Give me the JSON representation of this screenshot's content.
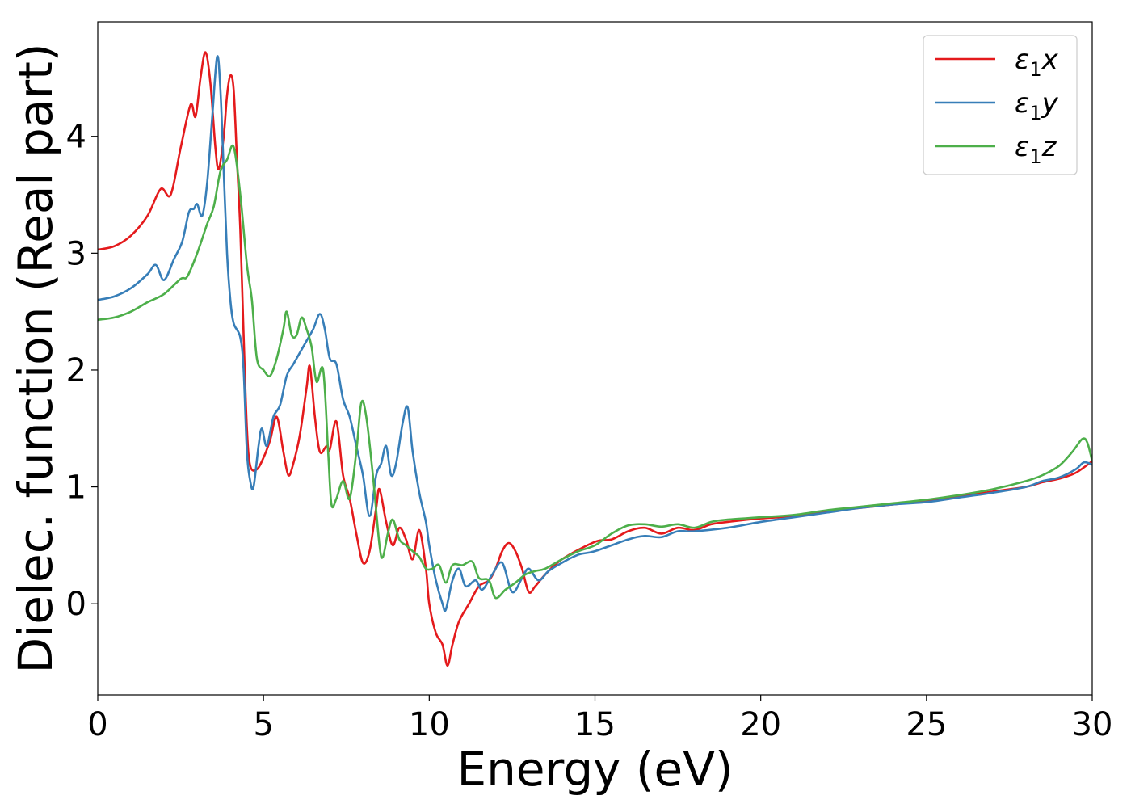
{
  "chart_data": {
    "type": "line",
    "xlabel": "Energy (eV)",
    "ylabel": "Dielec. function (Real part)",
    "xlim": [
      0,
      30
    ],
    "ylim": [
      -0.78,
      4.98
    ],
    "xticks": [
      0,
      5,
      10,
      15,
      20,
      25,
      30
    ],
    "yticks": [
      0,
      1,
      2,
      3,
      4
    ],
    "grid": false,
    "legend_position": "top-right",
    "series": [
      {
        "name": "ε1x",
        "legend_main": "ε",
        "legend_sub": "1",
        "legend_suffix": "x",
        "color": "#e41a1c",
        "points": [
          [
            0,
            3.03
          ],
          [
            0.5,
            3.06
          ],
          [
            1.0,
            3.15
          ],
          [
            1.5,
            3.32
          ],
          [
            1.9,
            3.55
          ],
          [
            2.2,
            3.5
          ],
          [
            2.5,
            3.9
          ],
          [
            2.8,
            4.27
          ],
          [
            2.95,
            4.17
          ],
          [
            3.1,
            4.5
          ],
          [
            3.25,
            4.72
          ],
          [
            3.4,
            4.45
          ],
          [
            3.55,
            3.9
          ],
          [
            3.65,
            3.72
          ],
          [
            3.8,
            4.0
          ],
          [
            3.9,
            4.35
          ],
          [
            4.0,
            4.52
          ],
          [
            4.1,
            4.4
          ],
          [
            4.2,
            3.8
          ],
          [
            4.3,
            3.2
          ],
          [
            4.4,
            2.3
          ],
          [
            4.5,
            1.5
          ],
          [
            4.6,
            1.18
          ],
          [
            4.8,
            1.15
          ],
          [
            5.0,
            1.25
          ],
          [
            5.2,
            1.4
          ],
          [
            5.4,
            1.6
          ],
          [
            5.6,
            1.3
          ],
          [
            5.75,
            1.1
          ],
          [
            5.9,
            1.2
          ],
          [
            6.1,
            1.45
          ],
          [
            6.3,
            1.85
          ],
          [
            6.4,
            2.03
          ],
          [
            6.55,
            1.6
          ],
          [
            6.7,
            1.3
          ],
          [
            6.9,
            1.35
          ],
          [
            7.0,
            1.32
          ],
          [
            7.2,
            1.56
          ],
          [
            7.4,
            1.1
          ],
          [
            7.6,
            0.9
          ],
          [
            7.8,
            0.6
          ],
          [
            8.0,
            0.35
          ],
          [
            8.2,
            0.45
          ],
          [
            8.4,
            0.82
          ],
          [
            8.5,
            0.98
          ],
          [
            8.7,
            0.7
          ],
          [
            8.9,
            0.5
          ],
          [
            9.1,
            0.65
          ],
          [
            9.3,
            0.55
          ],
          [
            9.5,
            0.38
          ],
          [
            9.7,
            0.63
          ],
          [
            9.9,
            0.3
          ],
          [
            10.0,
            0.0
          ],
          [
            10.2,
            -0.25
          ],
          [
            10.4,
            -0.35
          ],
          [
            10.55,
            -0.53
          ],
          [
            10.7,
            -0.35
          ],
          [
            10.9,
            -0.15
          ],
          [
            11.2,
            0.0
          ],
          [
            11.5,
            0.15
          ],
          [
            11.8,
            0.2
          ],
          [
            12.0,
            0.3
          ],
          [
            12.2,
            0.45
          ],
          [
            12.4,
            0.52
          ],
          [
            12.6,
            0.45
          ],
          [
            12.8,
            0.3
          ],
          [
            13.0,
            0.1
          ],
          [
            13.2,
            0.15
          ],
          [
            13.5,
            0.25
          ],
          [
            14.0,
            0.38
          ],
          [
            15.0,
            0.53
          ],
          [
            15.5,
            0.55
          ],
          [
            16.0,
            0.62
          ],
          [
            16.5,
            0.65
          ],
          [
            17.0,
            0.6
          ],
          [
            17.5,
            0.65
          ],
          [
            18.0,
            0.63
          ],
          [
            18.5,
            0.68
          ],
          [
            19.0,
            0.7
          ],
          [
            20.0,
            0.73
          ],
          [
            21.0,
            0.75
          ],
          [
            22.0,
            0.79
          ],
          [
            23.0,
            0.82
          ],
          [
            24.0,
            0.85
          ],
          [
            25.0,
            0.88
          ],
          [
            26.0,
            0.92
          ],
          [
            27.0,
            0.96
          ],
          [
            28.0,
            1.0
          ],
          [
            28.5,
            1.04
          ],
          [
            29.0,
            1.07
          ],
          [
            29.5,
            1.12
          ],
          [
            30.0,
            1.22
          ]
        ]
      },
      {
        "name": "ε1y",
        "legend_main": "ε",
        "legend_sub": "1",
        "legend_suffix": "y",
        "color": "#377eb8",
        "points": [
          [
            0,
            2.6
          ],
          [
            0.5,
            2.63
          ],
          [
            1.0,
            2.7
          ],
          [
            1.5,
            2.82
          ],
          [
            1.75,
            2.9
          ],
          [
            2.0,
            2.77
          ],
          [
            2.3,
            2.95
          ],
          [
            2.55,
            3.1
          ],
          [
            2.75,
            3.35
          ],
          [
            2.9,
            3.38
          ],
          [
            3.0,
            3.42
          ],
          [
            3.15,
            3.32
          ],
          [
            3.3,
            3.6
          ],
          [
            3.45,
            4.15
          ],
          [
            3.6,
            4.68
          ],
          [
            3.7,
            4.4
          ],
          [
            3.8,
            3.7
          ],
          [
            3.9,
            3.0
          ],
          [
            4.0,
            2.6
          ],
          [
            4.1,
            2.4
          ],
          [
            4.3,
            2.28
          ],
          [
            4.4,
            2.0
          ],
          [
            4.5,
            1.3
          ],
          [
            4.6,
            1.05
          ],
          [
            4.7,
            1.0
          ],
          [
            4.85,
            1.35
          ],
          [
            4.95,
            1.5
          ],
          [
            5.1,
            1.35
          ],
          [
            5.3,
            1.6
          ],
          [
            5.5,
            1.7
          ],
          [
            5.7,
            1.95
          ],
          [
            5.9,
            2.05
          ],
          [
            6.1,
            2.15
          ],
          [
            6.3,
            2.25
          ],
          [
            6.5,
            2.35
          ],
          [
            6.7,
            2.48
          ],
          [
            6.85,
            2.35
          ],
          [
            7.0,
            2.1
          ],
          [
            7.2,
            2.05
          ],
          [
            7.4,
            1.75
          ],
          [
            7.6,
            1.6
          ],
          [
            7.8,
            1.35
          ],
          [
            8.0,
            1.1
          ],
          [
            8.2,
            0.75
          ],
          [
            8.4,
            1.1
          ],
          [
            8.55,
            1.2
          ],
          [
            8.7,
            1.35
          ],
          [
            8.85,
            1.1
          ],
          [
            9.0,
            1.2
          ],
          [
            9.2,
            1.55
          ],
          [
            9.35,
            1.68
          ],
          [
            9.5,
            1.3
          ],
          [
            9.7,
            0.95
          ],
          [
            9.9,
            0.7
          ],
          [
            10.0,
            0.5
          ],
          [
            10.2,
            0.2
          ],
          [
            10.4,
            0.0
          ],
          [
            10.5,
            -0.05
          ],
          [
            10.7,
            0.2
          ],
          [
            10.9,
            0.3
          ],
          [
            11.1,
            0.15
          ],
          [
            11.4,
            0.2
          ],
          [
            11.6,
            0.12
          ],
          [
            11.9,
            0.25
          ],
          [
            12.2,
            0.35
          ],
          [
            12.5,
            0.1
          ],
          [
            12.8,
            0.22
          ],
          [
            13.0,
            0.3
          ],
          [
            13.3,
            0.2
          ],
          [
            13.6,
            0.28
          ],
          [
            14.0,
            0.35
          ],
          [
            14.5,
            0.42
          ],
          [
            15.0,
            0.45
          ],
          [
            16.0,
            0.55
          ],
          [
            16.5,
            0.58
          ],
          [
            17.0,
            0.57
          ],
          [
            17.5,
            0.62
          ],
          [
            18.0,
            0.62
          ],
          [
            19.0,
            0.65
          ],
          [
            20.0,
            0.7
          ],
          [
            21.0,
            0.74
          ],
          [
            22.0,
            0.78
          ],
          [
            23.0,
            0.82
          ],
          [
            24.0,
            0.85
          ],
          [
            25.0,
            0.87
          ],
          [
            26.0,
            0.91
          ],
          [
            27.0,
            0.95
          ],
          [
            28.0,
            1.0
          ],
          [
            28.5,
            1.05
          ],
          [
            29.0,
            1.08
          ],
          [
            29.5,
            1.15
          ],
          [
            29.75,
            1.21
          ],
          [
            30.0,
            1.19
          ]
        ]
      },
      {
        "name": "ε1z",
        "legend_main": "ε",
        "legend_sub": "1",
        "legend_suffix": "z",
        "color": "#4daf4a",
        "points": [
          [
            0,
            2.43
          ],
          [
            0.5,
            2.45
          ],
          [
            1.0,
            2.5
          ],
          [
            1.5,
            2.58
          ],
          [
            2.0,
            2.65
          ],
          [
            2.5,
            2.78
          ],
          [
            2.7,
            2.8
          ],
          [
            3.0,
            3.0
          ],
          [
            3.3,
            3.25
          ],
          [
            3.5,
            3.4
          ],
          [
            3.7,
            3.7
          ],
          [
            3.9,
            3.8
          ],
          [
            4.1,
            3.91
          ],
          [
            4.3,
            3.5
          ],
          [
            4.5,
            2.9
          ],
          [
            4.65,
            2.6
          ],
          [
            4.8,
            2.1
          ],
          [
            5.0,
            2.0
          ],
          [
            5.2,
            1.95
          ],
          [
            5.4,
            2.1
          ],
          [
            5.6,
            2.35
          ],
          [
            5.7,
            2.5
          ],
          [
            5.85,
            2.3
          ],
          [
            6.0,
            2.3
          ],
          [
            6.15,
            2.45
          ],
          [
            6.3,
            2.35
          ],
          [
            6.45,
            2.2
          ],
          [
            6.6,
            1.9
          ],
          [
            6.8,
            2.0
          ],
          [
            6.95,
            1.3
          ],
          [
            7.05,
            0.85
          ],
          [
            7.2,
            0.9
          ],
          [
            7.4,
            1.05
          ],
          [
            7.6,
            0.9
          ],
          [
            7.8,
            1.3
          ],
          [
            7.95,
            1.72
          ],
          [
            8.1,
            1.6
          ],
          [
            8.3,
            1.1
          ],
          [
            8.5,
            0.5
          ],
          [
            8.6,
            0.4
          ],
          [
            8.75,
            0.6
          ],
          [
            8.9,
            0.72
          ],
          [
            9.1,
            0.55
          ],
          [
            9.3,
            0.5
          ],
          [
            9.5,
            0.45
          ],
          [
            9.7,
            0.4
          ],
          [
            9.9,
            0.3
          ],
          [
            10.1,
            0.3
          ],
          [
            10.3,
            0.33
          ],
          [
            10.5,
            0.18
          ],
          [
            10.7,
            0.33
          ],
          [
            11.0,
            0.33
          ],
          [
            11.3,
            0.36
          ],
          [
            11.5,
            0.22
          ],
          [
            11.8,
            0.2
          ],
          [
            12.0,
            0.05
          ],
          [
            12.3,
            0.12
          ],
          [
            12.6,
            0.18
          ],
          [
            12.9,
            0.25
          ],
          [
            13.2,
            0.28
          ],
          [
            13.5,
            0.3
          ],
          [
            14.0,
            0.38
          ],
          [
            14.5,
            0.45
          ],
          [
            15.0,
            0.5
          ],
          [
            15.5,
            0.6
          ],
          [
            16.0,
            0.67
          ],
          [
            16.5,
            0.68
          ],
          [
            17.0,
            0.66
          ],
          [
            17.5,
            0.68
          ],
          [
            18.0,
            0.65
          ],
          [
            18.5,
            0.7
          ],
          [
            19.0,
            0.72
          ],
          [
            20.0,
            0.74
          ],
          [
            21.0,
            0.76
          ],
          [
            22.0,
            0.8
          ],
          [
            23.0,
            0.83
          ],
          [
            24.0,
            0.86
          ],
          [
            25.0,
            0.89
          ],
          [
            26.0,
            0.93
          ],
          [
            27.0,
            0.98
          ],
          [
            28.0,
            1.05
          ],
          [
            28.5,
            1.1
          ],
          [
            29.0,
            1.18
          ],
          [
            29.4,
            1.3
          ],
          [
            29.7,
            1.41
          ],
          [
            29.85,
            1.38
          ],
          [
            30.0,
            1.22
          ]
        ]
      }
    ]
  }
}
